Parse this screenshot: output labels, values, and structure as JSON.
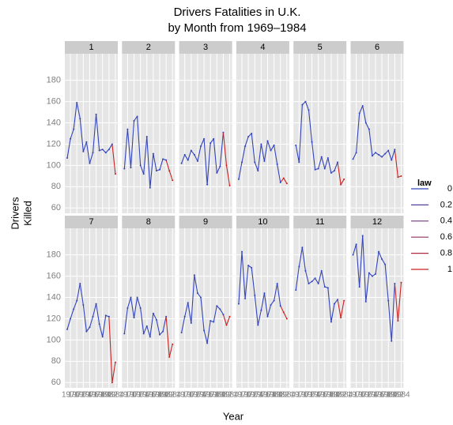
{
  "chart_data": {
    "type": "line",
    "title": [
      "Drivers Fatalities in U.K.",
      "by Month from 1969–1984"
    ],
    "x_label": "Year",
    "y_label": [
      "Drivers",
      "Killed"
    ],
    "x": [
      1969,
      1970,
      1971,
      1972,
      1973,
      1974,
      1975,
      1976,
      1977,
      1978,
      1979,
      1980,
      1981,
      1982,
      1983,
      1984
    ],
    "xlim": [
      1968.25,
      1984.75
    ],
    "xticks": [
      1970,
      1972,
      1974,
      1976,
      1978,
      1980,
      1982,
      1984
    ],
    "ylim": [
      55,
      205
    ],
    "yticks": [
      60,
      80,
      100,
      120,
      140,
      160,
      180
    ],
    "grid": true,
    "facets": [
      {
        "name": "1",
        "values": [
          107,
          125,
          134,
          159,
          144,
          113,
          122,
          102,
          112,
          148,
          114,
          115,
          112,
          115,
          120,
          92
        ],
        "law": [
          0,
          0,
          0,
          0,
          0,
          0,
          0,
          0,
          0,
          0,
          0,
          0,
          0,
          0,
          0,
          1
        ]
      },
      {
        "name": "2",
        "values": [
          97,
          134,
          98,
          142,
          146,
          100,
          92,
          127,
          79,
          111,
          95,
          96,
          106,
          105,
          95,
          86
        ],
        "law": [
          0,
          0,
          0,
          0,
          0,
          0,
          0,
          0,
          0,
          0,
          0,
          0,
          0,
          0,
          1,
          1
        ]
      },
      {
        "name": "3",
        "values": [
          102,
          110,
          105,
          114,
          110,
          104,
          118,
          125,
          82,
          121,
          125,
          93,
          99,
          131,
          100,
          81
        ],
        "law": [
          0,
          0,
          0,
          0,
          0,
          0,
          0,
          0,
          0,
          0,
          0,
          0,
          0,
          0,
          1,
          1
        ]
      },
      {
        "name": "4",
        "values": [
          87,
          103,
          118,
          127,
          130,
          103,
          95,
          120,
          104,
          123,
          114,
          119,
          101,
          84,
          88,
          83
        ],
        "law": [
          0,
          0,
          0,
          0,
          0,
          0,
          0,
          0,
          0,
          0,
          0,
          0,
          0,
          0,
          1,
          1
        ]
      },
      {
        "name": "5",
        "values": [
          119,
          103,
          157,
          160,
          152,
          122,
          96,
          97,
          108,
          97,
          107,
          93,
          95,
          103,
          82,
          87
        ],
        "law": [
          0,
          0,
          0,
          0,
          0,
          0,
          0,
          0,
          0,
          0,
          0,
          0,
          0,
          0,
          1,
          1
        ]
      },
      {
        "name": "6",
        "values": [
          106,
          112,
          149,
          156,
          140,
          134,
          109,
          112,
          110,
          108,
          111,
          114,
          105,
          115,
          89,
          90
        ],
        "law": [
          0,
          0,
          0,
          0,
          0,
          0,
          0,
          0,
          0,
          0,
          0,
          0,
          0,
          0,
          1,
          1
        ]
      },
      {
        "name": "7",
        "values": [
          110,
          120,
          129,
          137,
          153,
          133,
          108,
          112,
          122,
          134,
          115,
          103,
          123,
          122,
          60,
          79
        ],
        "law": [
          0,
          0,
          0,
          0,
          0,
          0,
          0,
          0,
          0,
          0,
          0,
          0,
          0,
          0,
          1,
          1
        ]
      },
      {
        "name": "8",
        "values": [
          106,
          130,
          140,
          121,
          140,
          130,
          106,
          113,
          103,
          125,
          119,
          105,
          108,
          122,
          84,
          96
        ],
        "law": [
          0,
          0,
          0,
          0,
          0,
          0,
          0,
          0,
          0,
          0,
          0,
          0,
          0,
          0,
          1,
          1
        ]
      },
      {
        "name": "9",
        "values": [
          107,
          122,
          135,
          116,
          161,
          144,
          140,
          109,
          97,
          118,
          117,
          132,
          129,
          124,
          114,
          122
        ],
        "law": [
          0,
          0,
          0,
          0,
          0,
          0,
          0,
          0,
          0,
          0,
          0,
          0,
          0,
          0,
          1,
          1
        ]
      },
      {
        "name": "10",
        "values": [
          134,
          183,
          139,
          170,
          168,
          142,
          114,
          128,
          144,
          122,
          133,
          137,
          153,
          132,
          126,
          120
        ],
        "law": [
          0,
          0,
          0,
          0,
          0,
          0,
          0,
          0,
          0,
          0,
          0,
          0,
          0,
          0,
          1,
          1
        ]
      },
      {
        "name": "11",
        "values": [
          147,
          169,
          187,
          165,
          153,
          155,
          158,
          153,
          165,
          150,
          149,
          117,
          134,
          138,
          121,
          137
        ],
        "law": [
          0,
          0,
          0,
          0,
          0,
          0,
          0,
          0,
          0,
          0,
          0,
          0,
          0,
          0,
          1,
          1
        ]
      },
      {
        "name": "12",
        "values": [
          180,
          190,
          150,
          198,
          136,
          163,
          160,
          162,
          183,
          176,
          171,
          137,
          99,
          153,
          118,
          154
        ],
        "law": [
          0,
          0,
          0,
          0,
          0,
          0,
          0,
          0,
          0,
          0,
          0,
          0,
          0,
          0,
          1,
          1
        ]
      }
    ],
    "legend": {
      "title": "law",
      "values": [
        0,
        0.2,
        0.4,
        0.6,
        0.8,
        1
      ],
      "colors": [
        "#3344bb",
        "#523d9c",
        "#70367e",
        "#8f305f",
        "#ad2941",
        "#cc2222"
      ]
    }
  }
}
